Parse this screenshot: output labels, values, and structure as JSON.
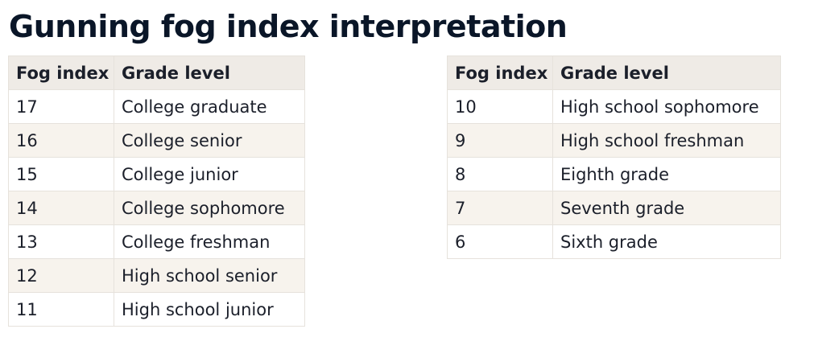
{
  "title": "Gunning fog index interpretation",
  "headers": {
    "fog_index": "Fog index",
    "grade_level": "Grade level"
  },
  "left_table": {
    "rows": [
      {
        "fog": "17",
        "grade": "College graduate"
      },
      {
        "fog": "16",
        "grade": "College senior"
      },
      {
        "fog": "15",
        "grade": "College junior"
      },
      {
        "fog": "14",
        "grade": "College sophomore"
      },
      {
        "fog": "13",
        "grade": "College freshman"
      },
      {
        "fog": "12",
        "grade": "High school senior"
      },
      {
        "fog": "11",
        "grade": "High school junior"
      }
    ]
  },
  "right_table": {
    "rows": [
      {
        "fog": "10",
        "grade": "High school sophomore"
      },
      {
        "fog": "9",
        "grade": "High school freshman"
      },
      {
        "fog": "8",
        "grade": "Eighth grade"
      },
      {
        "fog": "7",
        "grade": "Seventh grade"
      },
      {
        "fog": "6",
        "grade": "Sixth grade"
      }
    ]
  },
  "colors": {
    "header_bg": "#efebe6",
    "stripe_bg": "#f7f3ed",
    "border": "#e6e2dc",
    "title": "#0a1628"
  }
}
